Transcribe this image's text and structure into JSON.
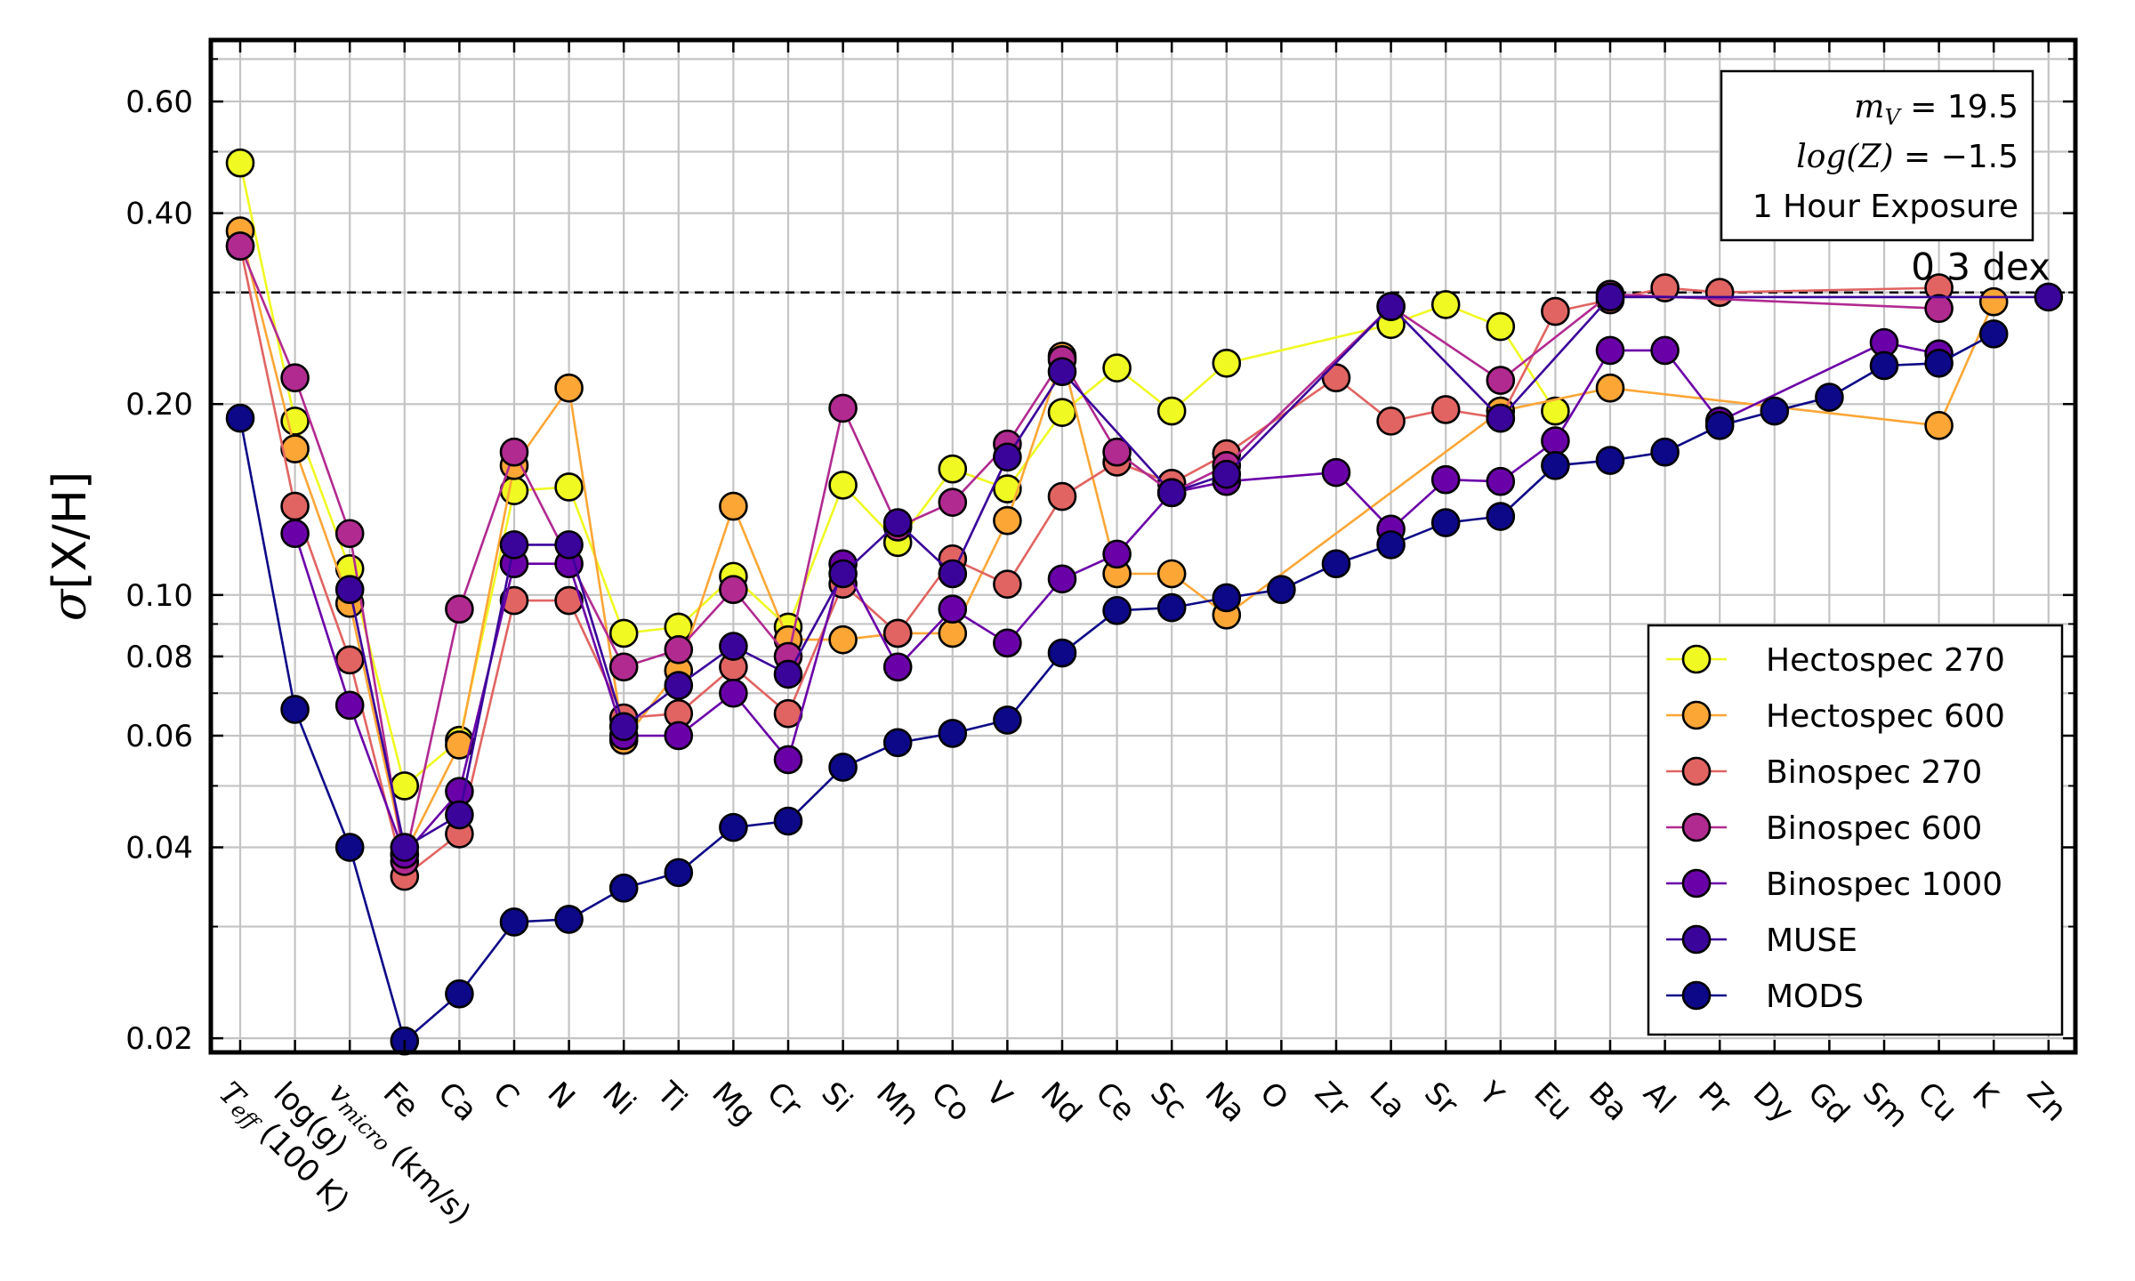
{
  "chart_data": {
    "type": "line",
    "xlabel": "",
    "ylabel": "σ[X/H]",
    "yscale": "log",
    "ylim": [
      0.019,
      0.75
    ],
    "grid": true,
    "legend_position": "lower-right",
    "categories": [
      "T_eff (100 K)",
      "log(g)",
      "v_micro (km/s)",
      "Fe",
      "Ca",
      "C",
      "N",
      "Ni",
      "Ti",
      "Mg",
      "Cr",
      "Si",
      "Mn",
      "Co",
      "V",
      "Nd",
      "Ce",
      "Sc",
      "Na",
      "O",
      "Zr",
      "La",
      "Sr",
      "Y",
      "Eu",
      "Ba",
      "Al",
      "Pr",
      "Dy",
      "Gd",
      "Sm",
      "Cu",
      "K",
      "Zn"
    ],
    "x_tick_labels": [
      {
        "main": "T",
        "sub": "eff",
        "rest": " (100 K)"
      },
      {
        "main": "log(g)",
        "sub": "",
        "rest": ""
      },
      {
        "main": "v",
        "sub": "micro",
        "rest": " (km/s)"
      },
      {
        "main": "Fe",
        "sub": "",
        "rest": ""
      },
      {
        "main": "Ca",
        "sub": "",
        "rest": ""
      },
      {
        "main": "C",
        "sub": "",
        "rest": ""
      },
      {
        "main": "N",
        "sub": "",
        "rest": ""
      },
      {
        "main": "Ni",
        "sub": "",
        "rest": ""
      },
      {
        "main": "Ti",
        "sub": "",
        "rest": ""
      },
      {
        "main": "Mg",
        "sub": "",
        "rest": ""
      },
      {
        "main": "Cr",
        "sub": "",
        "rest": ""
      },
      {
        "main": "Si",
        "sub": "",
        "rest": ""
      },
      {
        "main": "Mn",
        "sub": "",
        "rest": ""
      },
      {
        "main": "Co",
        "sub": "",
        "rest": ""
      },
      {
        "main": "V",
        "sub": "",
        "rest": ""
      },
      {
        "main": "Nd",
        "sub": "",
        "rest": ""
      },
      {
        "main": "Ce",
        "sub": "",
        "rest": ""
      },
      {
        "main": "Sc",
        "sub": "",
        "rest": ""
      },
      {
        "main": "Na",
        "sub": "",
        "rest": ""
      },
      {
        "main": "O",
        "sub": "",
        "rest": ""
      },
      {
        "main": "Zr",
        "sub": "",
        "rest": ""
      },
      {
        "main": "La",
        "sub": "",
        "rest": ""
      },
      {
        "main": "Sr",
        "sub": "",
        "rest": ""
      },
      {
        "main": "Y",
        "sub": "",
        "rest": ""
      },
      {
        "main": "Eu",
        "sub": "",
        "rest": ""
      },
      {
        "main": "Ba",
        "sub": "",
        "rest": ""
      },
      {
        "main": "Al",
        "sub": "",
        "rest": ""
      },
      {
        "main": "Pr",
        "sub": "",
        "rest": ""
      },
      {
        "main": "Dy",
        "sub": "",
        "rest": ""
      },
      {
        "main": "Gd",
        "sub": "",
        "rest": ""
      },
      {
        "main": "Sm",
        "sub": "",
        "rest": ""
      },
      {
        "main": "Cu",
        "sub": "",
        "rest": ""
      },
      {
        "main": "K",
        "sub": "",
        "rest": ""
      },
      {
        "main": "Zn",
        "sub": "",
        "rest": ""
      }
    ],
    "y_ticks": [
      {
        "value": 0.02,
        "label": "0.02"
      },
      {
        "value": 0.04,
        "label": "0.04"
      },
      {
        "value": 0.06,
        "label": "0.06"
      },
      {
        "value": 0.08,
        "label": "0.08"
      },
      {
        "value": 0.1,
        "label": "0.10"
      },
      {
        "value": 0.2,
        "label": "0.20"
      },
      {
        "value": 0.4,
        "label": "0.40"
      },
      {
        "value": 0.6,
        "label": "0.60"
      }
    ],
    "y_minor_ticks": [
      0.03,
      0.05,
      0.07,
      0.09,
      0.3,
      0.5,
      0.7
    ],
    "reference_line": {
      "value": 0.3,
      "label": "0.3 dex"
    },
    "annotation_box": {
      "lines": [
        {
          "math": "m",
          "sub": "V",
          "rest": " = 19.5"
        },
        {
          "math": "log(Z)",
          "sub": "",
          "rest": " = −1.5"
        },
        {
          "math": "",
          "sub": "",
          "rest": "1 Hour Exposure"
        }
      ]
    },
    "series": [
      {
        "name": "Hectospec 270",
        "color": "#f0f921",
        "points": [
          [
            0,
            0.48
          ],
          [
            1,
            0.188
          ],
          [
            2,
            0.11
          ],
          [
            3,
            0.05
          ],
          [
            4,
            0.059
          ],
          [
            5,
            0.146
          ],
          [
            6,
            0.148
          ],
          [
            7,
            0.087
          ],
          [
            8,
            0.089
          ],
          [
            9,
            0.107
          ],
          [
            10,
            0.089
          ],
          [
            11,
            0.149
          ],
          [
            12,
            0.121
          ],
          [
            13,
            0.158
          ],
          [
            14,
            0.147
          ],
          [
            15,
            0.194
          ],
          [
            16,
            0.228
          ],
          [
            17,
            0.195
          ],
          [
            18,
            0.232
          ],
          [
            21,
            0.267
          ],
          [
            22,
            0.287
          ],
          [
            23,
            0.265
          ],
          [
            24,
            0.195
          ]
        ]
      },
      {
        "name": "Hectospec 600",
        "color": "#fca636",
        "points": [
          [
            0,
            0.375
          ],
          [
            1,
            0.17
          ],
          [
            2,
            0.097
          ],
          [
            3,
            0.039
          ],
          [
            4,
            0.058
          ],
          [
            5,
            0.16
          ],
          [
            6,
            0.212
          ],
          [
            7,
            0.059
          ],
          [
            8,
            0.076
          ],
          [
            9,
            0.138
          ],
          [
            10,
            0.085
          ],
          [
            11,
            0.085
          ],
          [
            12,
            0.087
          ],
          [
            13,
            0.087
          ],
          [
            14,
            0.131
          ],
          [
            15,
            0.238
          ],
          [
            16,
            0.108
          ],
          [
            17,
            0.108
          ],
          [
            18,
            0.093
          ],
          [
            23,
            0.195
          ],
          [
            25,
            0.212
          ],
          [
            31,
            0.185
          ],
          [
            32,
            0.29
          ]
        ]
      },
      {
        "name": "Binospec 270",
        "color": "#e16462",
        "points": [
          [
            0,
            0.355
          ],
          [
            1,
            0.138
          ],
          [
            2,
            0.079
          ],
          [
            3,
            0.036
          ],
          [
            4,
            0.042
          ],
          [
            5,
            0.098
          ],
          [
            6,
            0.098
          ],
          [
            7,
            0.064
          ],
          [
            8,
            0.065
          ],
          [
            9,
            0.077
          ],
          [
            10,
            0.065
          ],
          [
            11,
            0.104
          ],
          [
            12,
            0.087
          ],
          [
            13,
            0.114
          ],
          [
            14,
            0.104
          ],
          [
            15,
            0.143
          ],
          [
            16,
            0.162
          ],
          [
            17,
            0.15
          ],
          [
            18,
            0.167
          ],
          [
            20,
            0.22
          ],
          [
            21,
            0.188
          ],
          [
            22,
            0.196
          ],
          [
            23,
            0.19
          ],
          [
            24,
            0.28
          ],
          [
            25,
            0.292
          ],
          [
            26,
            0.305
          ],
          [
            27,
            0.3
          ],
          [
            31,
            0.305
          ]
        ]
      },
      {
        "name": "Binospec 600",
        "color": "#b12a90",
        "points": [
          [
            0,
            0.355
          ],
          [
            1,
            0.22
          ],
          [
            2,
            0.125
          ],
          [
            3,
            0.038
          ],
          [
            4,
            0.095
          ],
          [
            5,
            0.168
          ],
          [
            7,
            0.077
          ],
          [
            8,
            0.082
          ],
          [
            9,
            0.102
          ],
          [
            10,
            0.08
          ],
          [
            11,
            0.197
          ],
          [
            12,
            0.128
          ],
          [
            13,
            0.14
          ],
          [
            14,
            0.173
          ],
          [
            15,
            0.235
          ],
          [
            16,
            0.168
          ],
          [
            17,
            0.145
          ],
          [
            18,
            0.16
          ],
          [
            21,
            0.285
          ],
          [
            23,
            0.218
          ],
          [
            25,
            0.298
          ],
          [
            31,
            0.283
          ]
        ]
      },
      {
        "name": "Binospec 1000",
        "color": "#6a00a8",
        "points": [
          [
            1,
            0.125
          ],
          [
            2,
            0.067
          ],
          [
            3,
            0.039
          ],
          [
            4,
            0.049
          ],
          [
            5,
            0.112
          ],
          [
            6,
            0.112
          ],
          [
            7,
            0.06
          ],
          [
            8,
            0.06
          ],
          [
            9,
            0.07
          ],
          [
            10,
            0.055
          ],
          [
            11,
            0.112
          ],
          [
            12,
            0.077
          ],
          [
            13,
            0.095
          ],
          [
            14,
            0.084
          ],
          [
            15,
            0.106
          ],
          [
            16,
            0.116
          ],
          [
            17,
            0.145
          ],
          [
            18,
            0.151
          ],
          [
            20,
            0.156
          ],
          [
            21,
            0.127
          ],
          [
            22,
            0.152
          ],
          [
            23,
            0.151
          ],
          [
            24,
            0.175
          ],
          [
            25,
            0.243
          ],
          [
            26,
            0.243
          ],
          [
            27,
            0.188
          ],
          [
            30,
            0.25
          ],
          [
            31,
            0.24
          ]
        ]
      },
      {
        "name": "MUSE",
        "color": "#3a049a",
        "points": [
          [
            2,
            0.102
          ],
          [
            3,
            0.04
          ],
          [
            4,
            0.045
          ],
          [
            5,
            0.12
          ],
          [
            6,
            0.12
          ],
          [
            7,
            0.062
          ],
          [
            8,
            0.072
          ],
          [
            9,
            0.083
          ],
          [
            10,
            0.075
          ],
          [
            11,
            0.108
          ],
          [
            12,
            0.13
          ],
          [
            13,
            0.108
          ],
          [
            14,
            0.165
          ],
          [
            15,
            0.225
          ],
          [
            17,
            0.145
          ],
          [
            18,
            0.155
          ],
          [
            21,
            0.285
          ],
          [
            23,
            0.19
          ],
          [
            25,
            0.295
          ],
          [
            33,
            0.295
          ]
        ]
      },
      {
        "name": "MODS",
        "color": "#0d0887",
        "points": [
          [
            0,
            0.19
          ],
          [
            1,
            0.066
          ],
          [
            2,
            0.04
          ],
          [
            3,
            0.0198
          ],
          [
            4,
            0.0235
          ],
          [
            5,
            0.0305
          ],
          [
            6,
            0.0308
          ],
          [
            7,
            0.0345
          ],
          [
            8,
            0.0365
          ],
          [
            9,
            0.043
          ],
          [
            10,
            0.044
          ],
          [
            11,
            0.0535
          ],
          [
            12,
            0.0585
          ],
          [
            13,
            0.0605
          ],
          [
            14,
            0.0635
          ],
          [
            15,
            0.081
          ],
          [
            16,
            0.0945
          ],
          [
            17,
            0.0955
          ],
          [
            18,
            0.099
          ],
          [
            19,
            0.102
          ],
          [
            20,
            0.112
          ],
          [
            21,
            0.12
          ],
          [
            22,
            0.13
          ],
          [
            23,
            0.133
          ],
          [
            24,
            0.16
          ],
          [
            25,
            0.163
          ],
          [
            26,
            0.168
          ],
          [
            27,
            0.185
          ],
          [
            28,
            0.195
          ],
          [
            29,
            0.205
          ],
          [
            30,
            0.23
          ],
          [
            31,
            0.232
          ],
          [
            32,
            0.258
          ]
        ]
      }
    ]
  }
}
